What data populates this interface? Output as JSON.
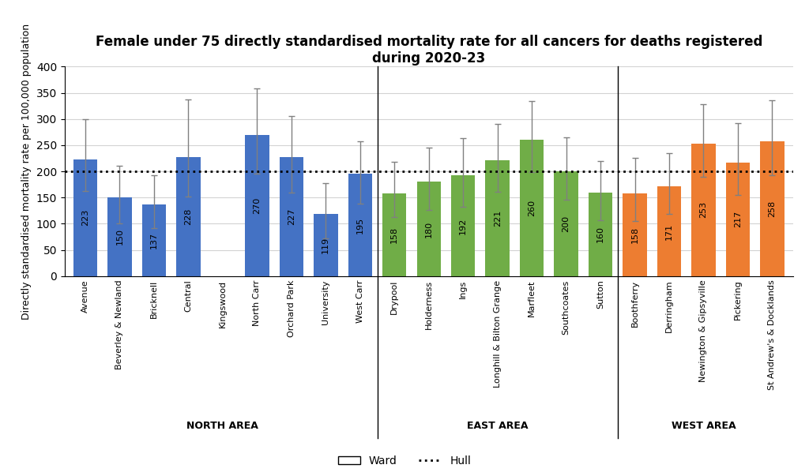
{
  "chart_data": {
    "type": "bar",
    "title": "Female under 75 directly standardised mortality rate for all cancers for deaths registered\nduring 2020-23",
    "y_label": "Directly standardised mortality rate per 100,000 population",
    "categories": [
      "Avenue",
      "Beverley & Newland",
      "Bricknell",
      "Central",
      "Kingswood",
      "North Carr",
      "Orchard Park",
      "University",
      "West Carr",
      "Drypool",
      "Holderness",
      "Ings",
      "Longhill & Bilton Grange",
      "Marfleet",
      "Southcoates",
      "Sutton",
      "Boothferry",
      "Derringham",
      "Newington & Gipsyville",
      "Pickering",
      "St Andrew's & Docklands"
    ],
    "groups": [
      "NORTH AREA",
      "NORTH AREA",
      "NORTH AREA",
      "NORTH AREA",
      "NORTH AREA",
      "NORTH AREA",
      "NORTH AREA",
      "NORTH AREA",
      "NORTH AREA",
      "EAST AREA",
      "EAST AREA",
      "EAST AREA",
      "EAST AREA",
      "EAST AREA",
      "EAST AREA",
      "EAST AREA",
      "WEST AREA",
      "WEST AREA",
      "WEST AREA",
      "WEST AREA",
      "WEST AREA"
    ],
    "series": [
      {
        "name": "Ward",
        "values": [
          223,
          150,
          137,
          228,
          null,
          270,
          227,
          119,
          195,
          158,
          180,
          192,
          221,
          260,
          200,
          160,
          158,
          171,
          253,
          217,
          258
        ],
        "ci_low": [
          163,
          100,
          92,
          152,
          null,
          195,
          160,
          72,
          138,
          113,
          127,
          133,
          161,
          198,
          146,
          106,
          105,
          118,
          190,
          155,
          193
        ],
        "ci_high": [
          300,
          210,
          193,
          338,
          null,
          358,
          305,
          178,
          258,
          218,
          246,
          263,
          290,
          334,
          265,
          220,
          225,
          235,
          328,
          292,
          336
        ],
        "colors": [
          "#4472C4",
          "#4472C4",
          "#4472C4",
          "#4472C4",
          "#4472C4",
          "#4472C4",
          "#4472C4",
          "#4472C4",
          "#4472C4",
          "#70AD47",
          "#70AD47",
          "#70AD47",
          "#70AD47",
          "#70AD47",
          "#70AD47",
          "#70AD47",
          "#ED7D31",
          "#ED7D31",
          "#ED7D31",
          "#ED7D31",
          "#ED7D31"
        ]
      }
    ],
    "reference_line": {
      "name": "Hull",
      "value": 200
    },
    "ylim": [
      0,
      400
    ],
    "yticks": [
      0,
      50,
      100,
      150,
      200,
      250,
      300,
      350,
      400
    ],
    "grid": true,
    "data_labels": true,
    "legend": "lower center"
  }
}
